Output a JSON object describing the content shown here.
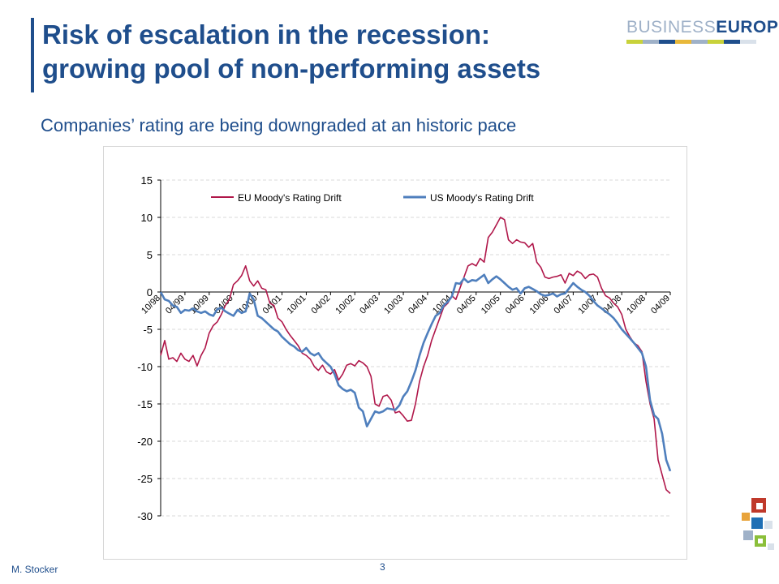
{
  "slide": {
    "title_line1": "Risk of escalation in the recession:",
    "title_line2": "growing pool of non-performing assets",
    "subtitle": "Companies’ rating are being downgraded at an historic pace",
    "author": "M. Stocker",
    "page_number": "3",
    "logo_part1": "BUSINESS",
    "logo_part2": "EURΟPE"
  },
  "colors": {
    "title": "#1f4e8c",
    "eu_series": "#b0174a",
    "us_series": "#4f7fbd",
    "grid": "#d9d9d9",
    "logo_strip": [
      "#c8d23a",
      "#9fb1c8",
      "#1f4e8c",
      "#e8b83a",
      "#9fb1c8",
      "#c8d23a",
      "#1f4e8c",
      "#d9e1ea"
    ],
    "decoration": [
      "#c0392b",
      "#e8a33a",
      "#1f6fb5",
      "#8bbf3a",
      "#9fb1c8",
      "#d9e1ea"
    ]
  },
  "chart_data": {
    "type": "line",
    "ylim": [
      -30,
      15
    ],
    "yticks": [
      15,
      10,
      5,
      0,
      -5,
      -10,
      -15,
      -20,
      -25,
      -30
    ],
    "xlim": [
      0,
      126
    ],
    "x_tick_labels": [
      "10/98",
      "04/99",
      "10/99",
      "04/00",
      "10/00",
      "04/01",
      "10/01",
      "04/02",
      "10/02",
      "04/03",
      "10/03",
      "04/04",
      "10/04",
      "04/05",
      "10/05",
      "04/06",
      "10/06",
      "04/07",
      "10/07",
      "04/08",
      "10/08",
      "04/09"
    ],
    "x_tick_positions": [
      0,
      6,
      12,
      18,
      24,
      30,
      36,
      42,
      48,
      54,
      60,
      66,
      72,
      78,
      84,
      90,
      96,
      102,
      108,
      114,
      120,
      126
    ],
    "grid": "horizontal dashed",
    "legend_position": "top",
    "series": [
      {
        "name": "EU Moody's Rating Drift",
        "x": [
          0,
          1,
          2,
          3,
          4,
          5,
          6,
          7,
          8,
          9,
          10,
          11,
          12,
          13,
          14,
          15,
          16,
          17,
          18,
          19,
          20,
          21,
          22,
          23,
          24,
          25,
          26,
          27,
          28,
          29,
          30,
          31,
          32,
          33,
          34,
          35,
          36,
          37,
          38,
          39,
          40,
          41,
          42,
          43,
          44,
          45,
          46,
          47,
          48,
          49,
          50,
          51,
          52,
          53,
          54,
          55,
          56,
          57,
          58,
          59,
          60,
          61,
          62,
          63,
          64,
          65,
          66,
          67,
          68,
          69,
          70,
          71,
          72,
          73,
          74,
          75,
          76,
          77,
          78,
          79,
          80,
          81,
          82,
          83,
          84,
          85,
          86,
          87,
          88,
          89,
          90,
          91,
          92,
          93,
          94,
          95,
          96,
          97,
          98,
          99,
          100,
          101,
          102,
          103,
          104,
          105,
          106,
          107,
          108,
          109,
          110,
          111,
          112,
          113,
          114,
          115,
          116,
          117,
          118,
          119,
          120,
          121,
          122,
          123,
          124,
          125,
          126
        ],
        "values": [
          -8.5,
          -6.5,
          -9,
          -8.8,
          -9.3,
          -8.2,
          -9,
          -9.3,
          -8.5,
          -9.9,
          -8.5,
          -7.5,
          -5.5,
          -4.5,
          -4,
          -3,
          -1.8,
          -1,
          1,
          1.5,
          2.2,
          3.5,
          1.5,
          0.8,
          1.5,
          0.5,
          0.3,
          -1.5,
          -1.8,
          -3.5,
          -4,
          -5,
          -5.8,
          -6.5,
          -7.2,
          -8.2,
          -8.5,
          -9,
          -10,
          -10.5,
          -9.8,
          -10.7,
          -11,
          -10.4,
          -11.8,
          -11,
          -9.8,
          -9.6,
          -9.9,
          -9.2,
          -9.5,
          -10,
          -11.3,
          -15,
          -15.3,
          -14,
          -13.8,
          -14.5,
          -16.2,
          -16,
          -16.6,
          -17.3,
          -17.2,
          -15,
          -12,
          -10,
          -8.5,
          -6.5,
          -5,
          -3.5,
          -2,
          -1.5,
          -0.5,
          -1,
          0.5,
          2,
          3.5,
          3.8,
          3.5,
          4.5,
          4,
          7.3,
          8,
          9,
          10,
          9.7,
          7,
          6.5,
          7,
          6.7,
          6.6,
          6,
          6.5,
          4,
          3.3,
          2,
          1.8,
          2,
          2.1,
          2.3,
          1.2,
          2.5,
          2.2,
          2.8,
          2.5,
          1.8,
          2.3,
          2.4,
          2,
          0.5,
          -0.5,
          -0.8,
          -1.5,
          -2,
          -3,
          -5,
          -6,
          -6.8,
          -7.2,
          -8,
          -12,
          -15,
          -17,
          -22.5,
          -24.5,
          -26.5,
          -27
        ]
      },
      {
        "name": "US Moody's Rating Drift",
        "x": [
          0,
          1,
          2,
          3,
          4,
          5,
          6,
          7,
          8,
          9,
          10,
          11,
          12,
          13,
          14,
          15,
          16,
          17,
          18,
          19,
          20,
          21,
          22,
          23,
          24,
          25,
          26,
          27,
          28,
          29,
          30,
          31,
          32,
          33,
          34,
          35,
          36,
          37,
          38,
          39,
          40,
          41,
          42,
          43,
          44,
          45,
          46,
          47,
          48,
          49,
          50,
          51,
          52,
          53,
          54,
          55,
          56,
          57,
          58,
          59,
          60,
          61,
          62,
          63,
          64,
          65,
          66,
          67,
          68,
          69,
          70,
          71,
          72,
          73,
          74,
          75,
          76,
          77,
          78,
          79,
          80,
          81,
          82,
          83,
          84,
          85,
          86,
          87,
          88,
          89,
          90,
          91,
          92,
          93,
          94,
          95,
          96,
          97,
          98,
          99,
          100,
          101,
          102,
          103,
          104,
          105,
          106,
          107,
          108,
          109,
          110,
          111,
          112,
          113,
          114,
          115,
          116,
          117,
          118,
          119,
          120,
          121,
          122,
          123,
          124,
          125,
          126
        ],
        "values": [
          0,
          -1,
          -1.2,
          -1.8,
          -2,
          -2.8,
          -2.4,
          -2.5,
          -2.2,
          -2.6,
          -2.8,
          -2.6,
          -3,
          -3.2,
          -2.3,
          -2.1,
          -2.6,
          -2.9,
          -3.2,
          -2.4,
          -2.8,
          -2.6,
          -0.2,
          -1,
          -3.2,
          -3.5,
          -4,
          -4.5,
          -5,
          -5.3,
          -6,
          -6.5,
          -7,
          -7.3,
          -7.8,
          -8,
          -7.5,
          -8.2,
          -8.5,
          -8.2,
          -9,
          -9.5,
          -10,
          -11,
          -12.5,
          -13,
          -13.3,
          -13.1,
          -13.5,
          -15.5,
          -16,
          -18,
          -17,
          -16,
          -16.2,
          -16,
          -15.6,
          -15.7,
          -15.8,
          -15.2,
          -14,
          -13.3,
          -12,
          -10.5,
          -8.5,
          -6.8,
          -5.5,
          -4.3,
          -3.2,
          -2.8,
          -1.8,
          -1.3,
          -0.6,
          1.2,
          1.1,
          1.8,
          1.3,
          1.6,
          1.5,
          1.9,
          2.3,
          1.2,
          1.7,
          2.1,
          1.7,
          1.2,
          0.7,
          0.3,
          0.5,
          -0.2,
          0.5,
          0.7,
          0.4,
          0.1,
          -0.3,
          -0.5,
          -0.4,
          -0.2,
          -0.6,
          -0.3,
          -0.2,
          0.5,
          1.2,
          0.7,
          0.3,
          0,
          -0.5,
          -1.2,
          -1.8,
          -2.2,
          -2.6,
          -3,
          -3.5,
          -4.2,
          -5,
          -5.6,
          -6.2,
          -6.8,
          -7.5,
          -8.2,
          -10,
          -14.5,
          -16.5,
          -17,
          -19,
          -22.5,
          -24
        ]
      }
    ]
  }
}
